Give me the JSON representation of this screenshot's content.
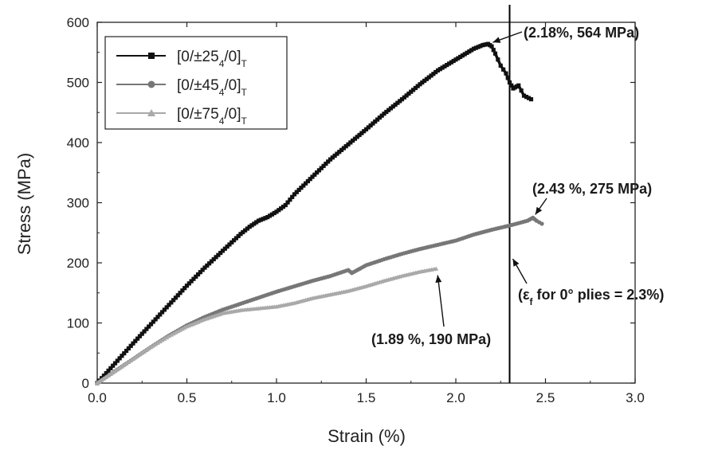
{
  "chart_data": {
    "type": "line",
    "xlabel": "Strain (%)",
    "ylabel": "Stress (MPa)",
    "xlim": [
      0,
      3.0
    ],
    "ylim": [
      0,
      600
    ],
    "x_ticks": [
      "0.0",
      "0.5",
      "1.0",
      "1.5",
      "2.0",
      "2.5",
      "3.0"
    ],
    "y_ticks": [
      "0",
      "100",
      "200",
      "300",
      "400",
      "500",
      "600"
    ],
    "grid": false,
    "legend_position": "top-left",
    "series": [
      {
        "name": "[0/±25₄/0]T",
        "legend_main": "[0/±25",
        "legend_sub1": "4",
        "legend_mid": "/0]",
        "legend_sub2": "T",
        "color": "#111111",
        "marker": "square",
        "x": [
          0,
          0.1,
          0.2,
          0.3,
          0.4,
          0.5,
          0.6,
          0.7,
          0.8,
          0.85,
          0.9,
          0.95,
          1.0,
          1.05,
          1.1,
          1.2,
          1.3,
          1.4,
          1.5,
          1.6,
          1.7,
          1.8,
          1.9,
          2.0,
          2.1,
          2.15,
          2.18,
          2.2,
          2.22,
          2.25,
          2.28,
          2.3,
          2.32,
          2.35,
          2.38,
          2.42
        ],
        "y": [
          0,
          33,
          66,
          98,
          130,
          162,
          192,
          220,
          248,
          260,
          270,
          276,
          285,
          296,
          314,
          343,
          372,
          397,
          422,
          448,
          472,
          497,
          520,
          538,
          556,
          562,
          564,
          560,
          548,
          528,
          515,
          500,
          490,
          495,
          478,
          472
        ]
      },
      {
        "name": "[0/±45₄/0]T",
        "legend_main": "[0/±45",
        "legend_sub1": "4",
        "legend_mid": "/0]",
        "legend_sub2": "T",
        "color": "#777777",
        "marker": "circle",
        "x": [
          0,
          0.1,
          0.2,
          0.3,
          0.4,
          0.5,
          0.6,
          0.7,
          0.8,
          0.9,
          1.0,
          1.1,
          1.2,
          1.3,
          1.4,
          1.42,
          1.5,
          1.6,
          1.7,
          1.8,
          1.9,
          2.0,
          2.1,
          2.2,
          2.3,
          2.4,
          2.43,
          2.45,
          2.48
        ],
        "y": [
          0,
          20,
          40,
          60,
          79,
          96,
          110,
          122,
          132,
          142,
          152,
          161,
          170,
          178,
          188,
          183,
          196,
          206,
          215,
          223,
          230,
          237,
          247,
          255,
          262,
          270,
          275,
          270,
          265
        ]
      },
      {
        "name": "[0/±75₄/0]T",
        "legend_main": "[0/±75",
        "legend_sub1": "4",
        "legend_mid": "/0]",
        "legend_sub2": "T",
        "color": "#a9a9a9",
        "marker": "triangle",
        "x": [
          0,
          0.1,
          0.2,
          0.3,
          0.4,
          0.5,
          0.6,
          0.7,
          0.8,
          0.9,
          1.0,
          1.1,
          1.2,
          1.3,
          1.4,
          1.5,
          1.6,
          1.7,
          1.8,
          1.89
        ],
        "y": [
          0,
          20,
          40,
          60,
          78,
          94,
          106,
          116,
          121,
          124,
          127,
          133,
          141,
          147,
          153,
          161,
          170,
          178,
          185,
          190
        ]
      }
    ],
    "reference_line": {
      "x": 2.3,
      "color": "#000000"
    },
    "annotations": [
      {
        "text": "(2.18%, 564 MPa)",
        "point": [
          2.18,
          564
        ]
      },
      {
        "text": "(2.43 %, 275 MPa)",
        "point": [
          2.43,
          275
        ]
      },
      {
        "text": "(1.89 %, 190 MPa)",
        "point": [
          1.89,
          190
        ]
      },
      {
        "text_pre": "(ε",
        "text_sub": "f",
        "text_post": " for 0° plies = 2.3%)",
        "point": [
          2.3,
          200
        ]
      }
    ]
  }
}
